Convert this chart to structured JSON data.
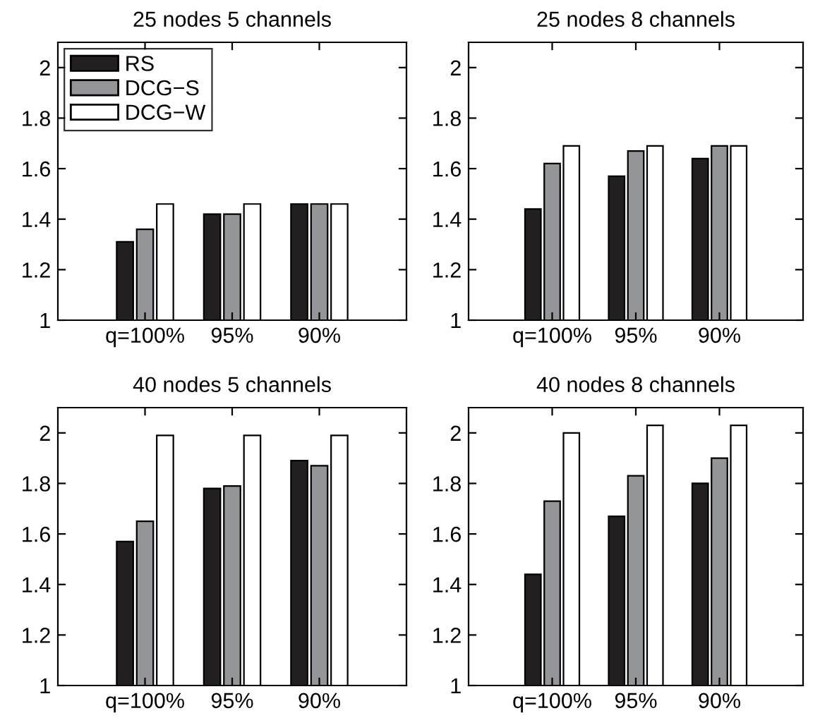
{
  "chart_data": [
    {
      "type": "bar",
      "title": "25 nodes 5 channels",
      "categories": [
        "q=100%",
        "95%",
        "90%"
      ],
      "ylim": [
        1,
        2.1
      ],
      "yticks": [
        1,
        1.2,
        1.4,
        1.6,
        1.8,
        2
      ],
      "grid": false,
      "legend": "top left",
      "series": [
        {
          "name": "RS",
          "color": "#231f20",
          "values": [
            1.31,
            1.42,
            1.46
          ]
        },
        {
          "name": "DCG−S",
          "color": "#939598",
          "values": [
            1.36,
            1.42,
            1.46
          ]
        },
        {
          "name": "DCG−W",
          "color": "#ffffff",
          "values": [
            1.46,
            1.46,
            1.46
          ]
        }
      ]
    },
    {
      "type": "bar",
      "title": "25 nodes 8 channels",
      "categories": [
        "q=100%",
        "95%",
        "90%"
      ],
      "ylim": [
        1,
        2.1
      ],
      "yticks": [
        1,
        1.2,
        1.4,
        1.6,
        1.8,
        2
      ],
      "grid": false,
      "series": [
        {
          "color": "#231f20",
          "values": [
            1.44,
            1.57,
            1.64
          ]
        },
        {
          "color": "#939598",
          "values": [
            1.62,
            1.67,
            1.69
          ]
        },
        {
          "color": "#ffffff",
          "values": [
            1.69,
            1.69,
            1.69
          ]
        }
      ]
    },
    {
      "type": "bar",
      "title": "40 nodes 5 channels",
      "categories": [
        "q=100%",
        "95%",
        "90%"
      ],
      "ylim": [
        1,
        2.1
      ],
      "yticks": [
        1,
        1.2,
        1.4,
        1.6,
        1.8,
        2
      ],
      "grid": false,
      "series": [
        {
          "color": "#231f20",
          "values": [
            1.57,
            1.78,
            1.89
          ]
        },
        {
          "color": "#939598",
          "values": [
            1.65,
            1.79,
            1.87
          ]
        },
        {
          "color": "#ffffff",
          "values": [
            1.99,
            1.99,
            1.99
          ]
        }
      ]
    },
    {
      "type": "bar",
      "title": "40 nodes 8 channels",
      "categories": [
        "q=100%",
        "95%",
        "90%"
      ],
      "ylim": [
        1,
        2.1
      ],
      "yticks": [
        1,
        1.2,
        1.4,
        1.6,
        1.8,
        2
      ],
      "grid": false,
      "series": [
        {
          "color": "#231f20",
          "values": [
            1.44,
            1.67,
            1.8
          ]
        },
        {
          "color": "#939598",
          "values": [
            1.73,
            1.83,
            1.9
          ]
        },
        {
          "color": "#ffffff",
          "values": [
            2.0,
            2.03,
            2.03
          ]
        }
      ]
    }
  ]
}
